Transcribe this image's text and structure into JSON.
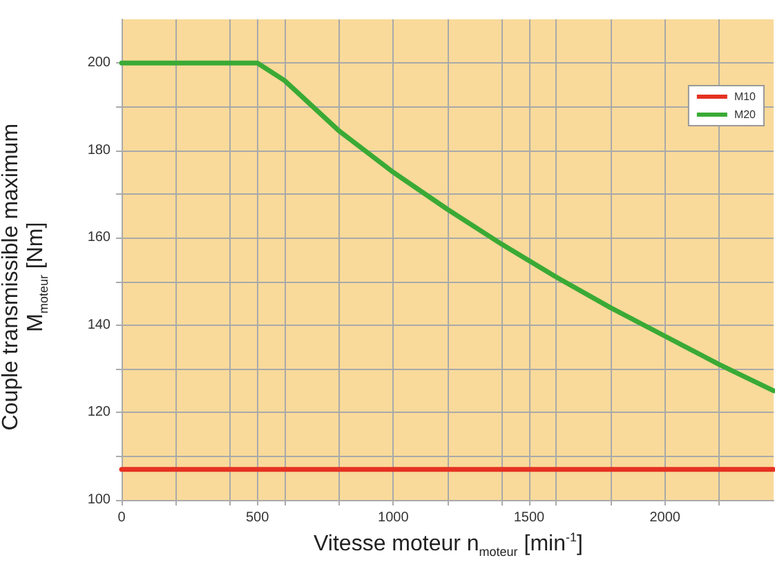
{
  "chart_data": {
    "type": "line",
    "xlabel": "Vitesse moteur n$_{moteur}$ [min$^{-1}$]",
    "ylabel": "Couple transmissible maximum\nM$_{moteur}$ [Nm]",
    "series": [
      {
        "name": "M10",
        "color": "#e53222",
        "x": [
          0,
          2400
        ],
        "values": [
          107,
          107
        ]
      },
      {
        "name": "M20",
        "color": "#3aaa35",
        "x": [
          0,
          500,
          600,
          800,
          1000,
          1200,
          1400,
          1600,
          1800,
          2000,
          2200,
          2400
        ],
        "values": [
          200,
          200,
          196,
          184.5,
          175,
          166.5,
          158.5,
          151,
          144,
          137.5,
          131,
          125
        ]
      }
    ],
    "xlim": [
      0,
      2400
    ],
    "xticks": [
      0,
      {
        "value": 200,
        "label": null
      },
      {
        "value": 400,
        "label": null
      },
      500,
      {
        "value": 600,
        "label": null
      },
      {
        "value": 800,
        "label": null
      },
      1000,
      {
        "value": 1200,
        "label": null
      },
      {
        "value": 1400,
        "label": null
      },
      1500,
      {
        "value": 1600,
        "label": null
      },
      {
        "value": 1800,
        "label": null
      },
      2000,
      {
        "value": 2200,
        "label": null
      }
    ],
    "ylim": [
      100,
      210
    ],
    "yticks": [
      100,
      {
        "value": 110,
        "label": null
      },
      120,
      {
        "value": 130,
        "label": null
      },
      140,
      {
        "value": 150,
        "label": null
      },
      160,
      {
        "value": 170,
        "label": null
      },
      180,
      {
        "value": 190,
        "label": null
      },
      200
    ],
    "grid": true,
    "legend": "top right",
    "marker": "none",
    "line_style": "solid"
  }
}
